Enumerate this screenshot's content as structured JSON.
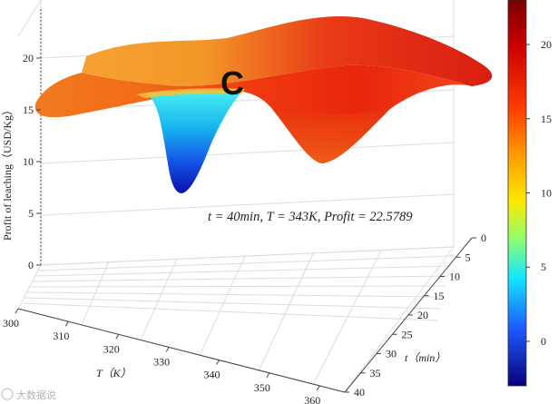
{
  "chart_data": {
    "type": "surface",
    "zlabel": "Profit of leaching（USD/Kg）",
    "xlabel": "T（K）",
    "ylabel": "t（min）",
    "x_ticks": [
      "300",
      "310",
      "320",
      "330",
      "340",
      "350",
      "360"
    ],
    "y_ticks": [
      "0",
      "5",
      "10",
      "15",
      "20",
      "25",
      "30",
      "35",
      "40"
    ],
    "z_ticks": [
      "0",
      "5",
      "10",
      "15",
      "20"
    ],
    "xlim": [
      300,
      365
    ],
    "ylim": [
      0,
      40
    ],
    "zlim": [
      0,
      23
    ],
    "colorbar": {
      "ticks": [
        "20",
        "15",
        "10",
        "5",
        "0"
      ],
      "range": [
        -3,
        23
      ],
      "colormap": "jet"
    },
    "optimum": {
      "marker": "C",
      "t_min": 40,
      "T_K": 343,
      "profit": 22.5789,
      "text": "t = 40min,  T = 343K,  Profit = 22.5789"
    },
    "surface_shape": {
      "left_edge_profit": 15,
      "valley_min_profit": 1.5,
      "right_low_profit": 11.5,
      "back_ridge_profit": 22,
      "right_edge_profit": 16
    },
    "grid": true
  },
  "watermark": "大数据说"
}
